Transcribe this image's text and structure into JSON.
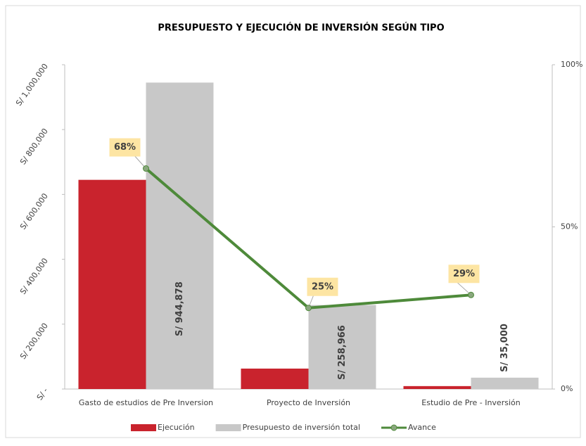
{
  "chart_data": {
    "type": "bar_line",
    "title": "PRESUPUESTO Y EJECUCIÓN DE INVERSIÓN SEGÚN TIPO",
    "categories": [
      "Gasto de estudios de Pre Inversion",
      "Proyecto de Inversión",
      "Estudio de Pre - Inversión"
    ],
    "series": [
      {
        "name": "Ejecución",
        "type": "bar",
        "color": "#c9232d",
        "values": [
          645000,
          63000,
          9000
        ]
      },
      {
        "name": "Presupuesto de inversión total",
        "type": "bar",
        "color": "#c8c8c8",
        "values": [
          944878,
          258966,
          35000
        ],
        "value_labels": [
          "S/ 944,878",
          "S/ 258,966",
          "S/ 35,000"
        ]
      },
      {
        "name": "Avance",
        "type": "line",
        "axis": "y2",
        "color": "#4e8a3a",
        "values": [
          68,
          25,
          29
        ],
        "value_labels": [
          "68%",
          "25%",
          "29%"
        ]
      }
    ],
    "ylim": [
      0,
      1000000
    ],
    "yticks": [
      {
        "value": 0,
        "label": "S/ -"
      },
      {
        "value": 200000,
        "label": "S/ 200,000"
      },
      {
        "value": 400000,
        "label": "S/ 400,000"
      },
      {
        "value": 600000,
        "label": "S/ 600,000"
      },
      {
        "value": 800000,
        "label": "S/ 800,000"
      },
      {
        "value": 1000000,
        "label": "S/ 1,000,000"
      }
    ],
    "y2lim": [
      0,
      100
    ],
    "y2ticks": [
      {
        "value": 0,
        "label": "0%"
      },
      {
        "value": 50,
        "label": "50%"
      },
      {
        "value": 100,
        "label": "100%"
      }
    ],
    "legend": "bottom"
  }
}
